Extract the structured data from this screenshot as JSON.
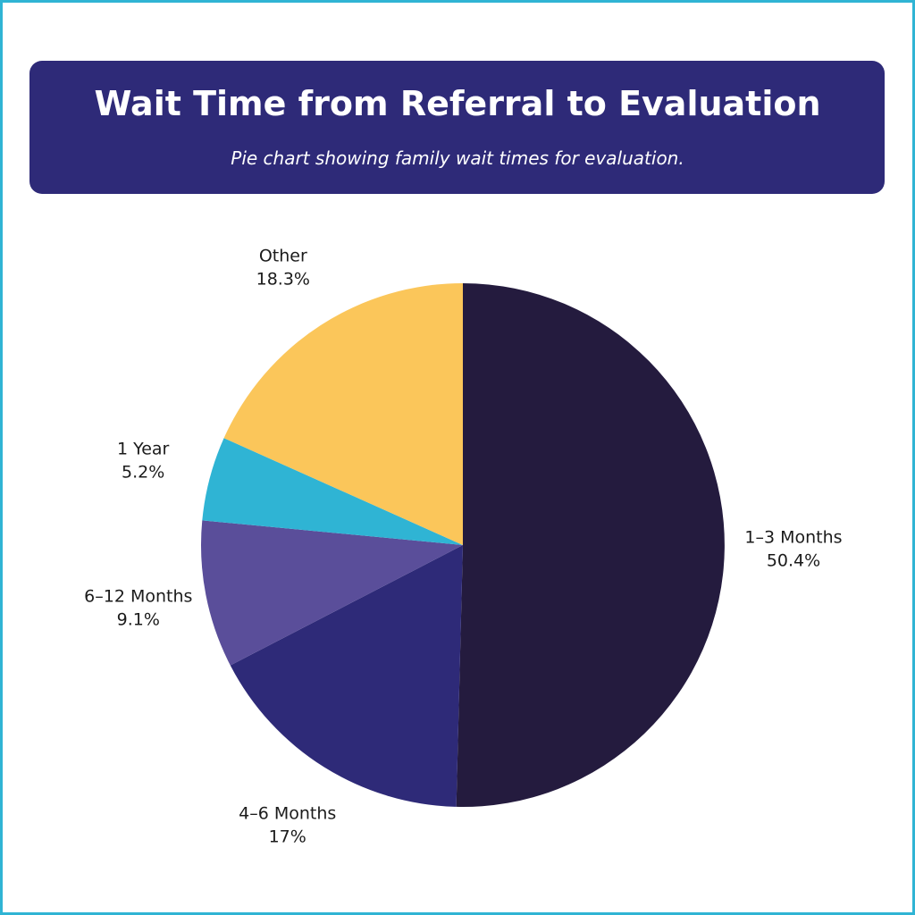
{
  "header": {
    "title": "Wait Time from Referral to Evaluation",
    "subtitle": "Pie chart showing family wait times for evaluation."
  },
  "colors": {
    "frame_border": "#2fb4d4",
    "header_bg": "#2e2a78",
    "header_text": "#ffffff",
    "label_text": "#1b1b1b"
  },
  "chart_data": {
    "type": "pie",
    "title": "Wait Time from Referral to Evaluation",
    "subtitle": "Pie chart showing family wait times for evaluation.",
    "start_angle_deg": 0,
    "direction": "clockwise",
    "slices": [
      {
        "label": "1–3 Months",
        "value": 50.4,
        "value_label": "50.4%",
        "color": "#241b3e"
      },
      {
        "label": "4–6 Months",
        "value": 17,
        "value_label": "17%",
        "color": "#2e2a78"
      },
      {
        "label": "6–12 Months",
        "value": 9.1,
        "value_label": "9.1%",
        "color": "#5a4e9a"
      },
      {
        "label": "1 Year",
        "value": 5.2,
        "value_label": "5.2%",
        "color": "#2fb4d4"
      },
      {
        "label": "Other",
        "value": 18.3,
        "value_label": "18.3%",
        "color": "#fbc65a"
      }
    ]
  }
}
